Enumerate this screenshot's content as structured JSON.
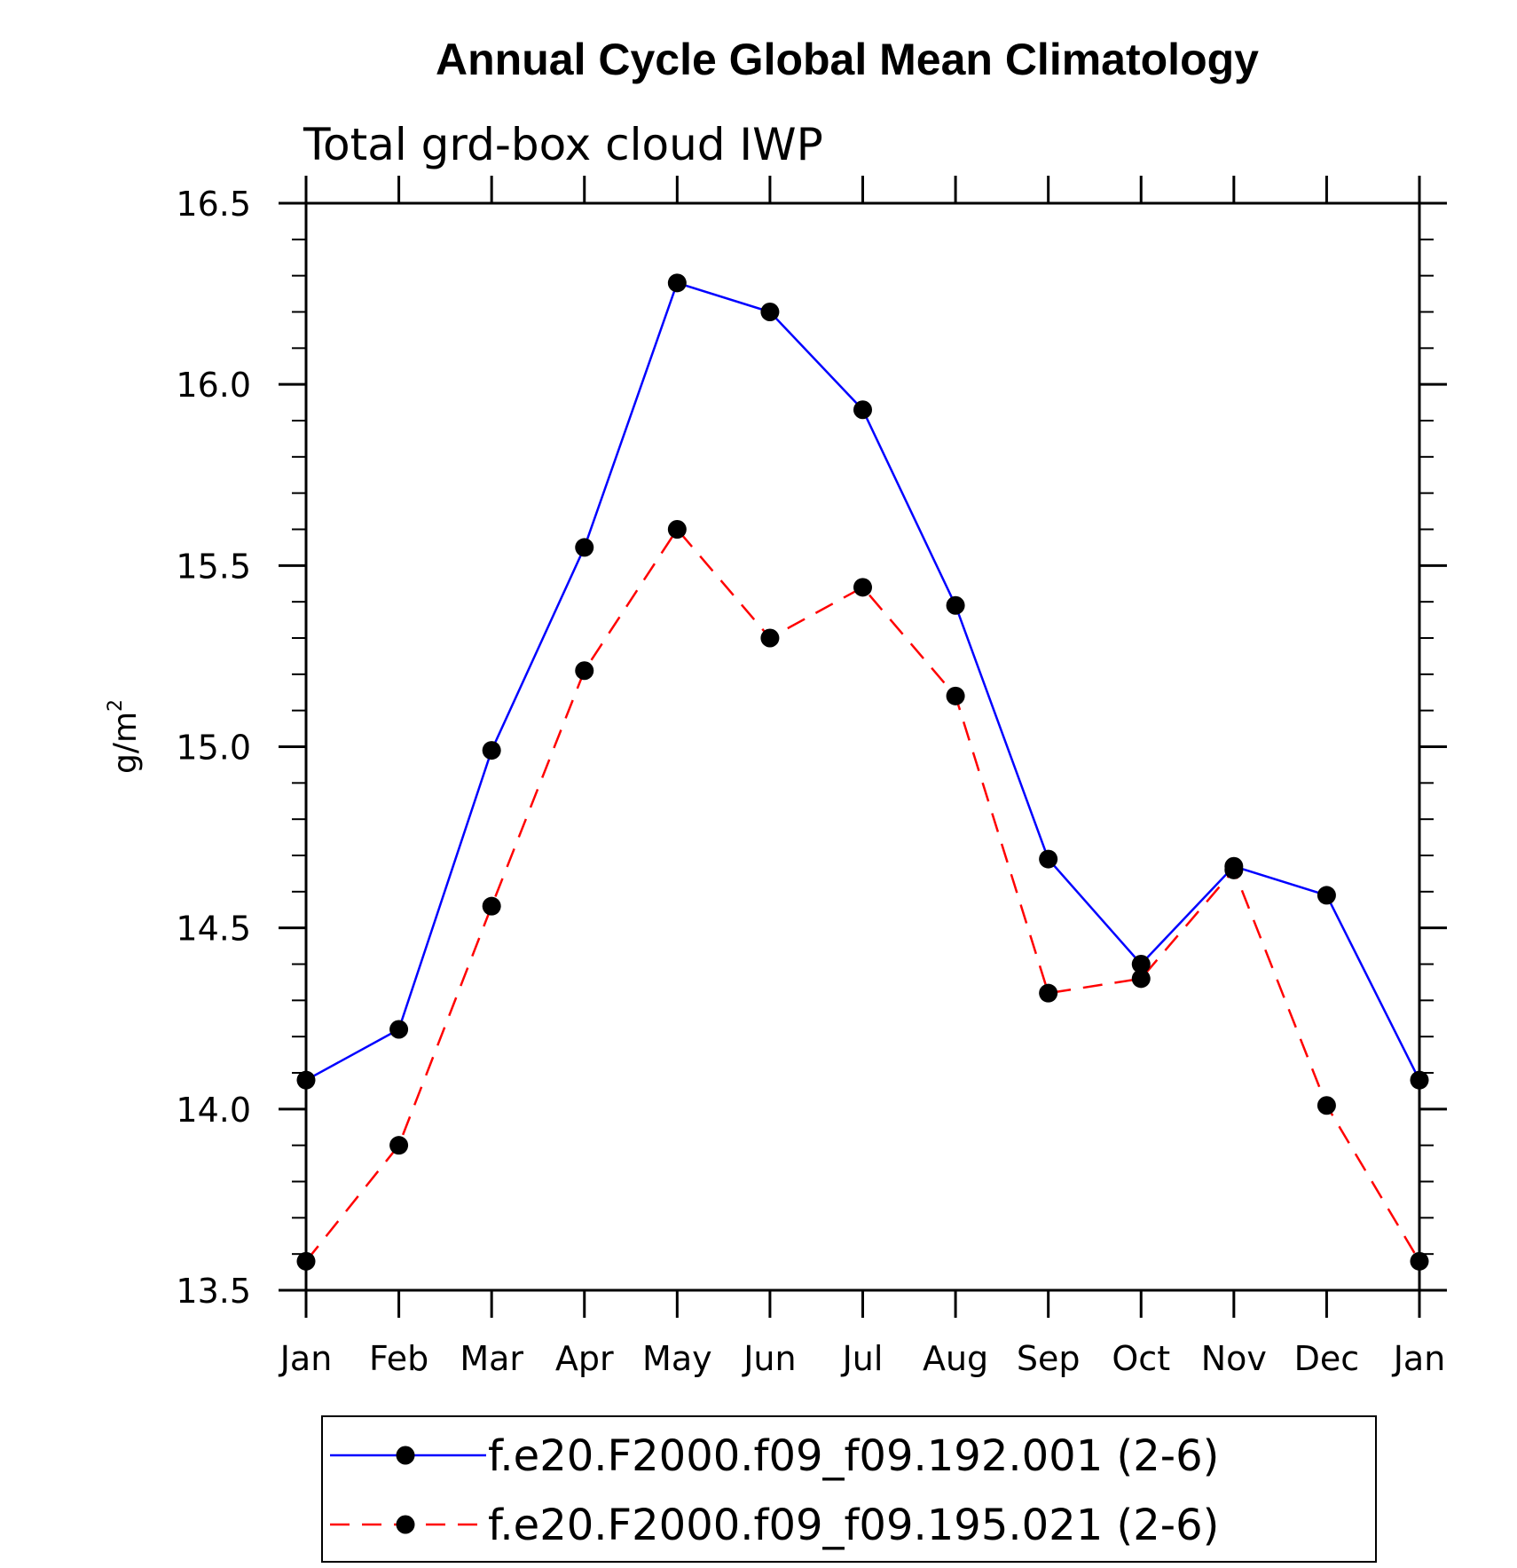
{
  "chart_data": {
    "type": "line",
    "title": "Annual Cycle Global Mean Climatology",
    "subtitle": "Total grd-box cloud IWP",
    "ylabel_base": "g/m",
    "ylabel_sup": "2",
    "categories": [
      "Jan",
      "Feb",
      "Mar",
      "Apr",
      "May",
      "Jun",
      "Jul",
      "Aug",
      "Sep",
      "Oct",
      "Nov",
      "Dec",
      "Jan"
    ],
    "ylim": [
      13.5,
      16.5
    ],
    "yticks": [
      "13.5",
      "14.0",
      "14.5",
      "15.0",
      "15.5",
      "16.0",
      "16.5"
    ],
    "series": [
      {
        "name": "f.e20.F2000.f09_f09.192.001 (2-6)",
        "color": "#0000ff",
        "dash": "solid",
        "values": [
          14.08,
          14.22,
          14.99,
          15.55,
          16.28,
          16.2,
          15.93,
          15.39,
          14.69,
          14.4,
          14.67,
          14.59,
          14.08
        ]
      },
      {
        "name": "f.e20.F2000.f09_f09.195.021 (2-6)",
        "color": "#ff0000",
        "dash": "dashed",
        "values": [
          13.58,
          13.9,
          14.56,
          15.21,
          15.6,
          15.3,
          15.44,
          15.14,
          14.32,
          14.36,
          14.66,
          14.01,
          13.58
        ]
      }
    ]
  }
}
